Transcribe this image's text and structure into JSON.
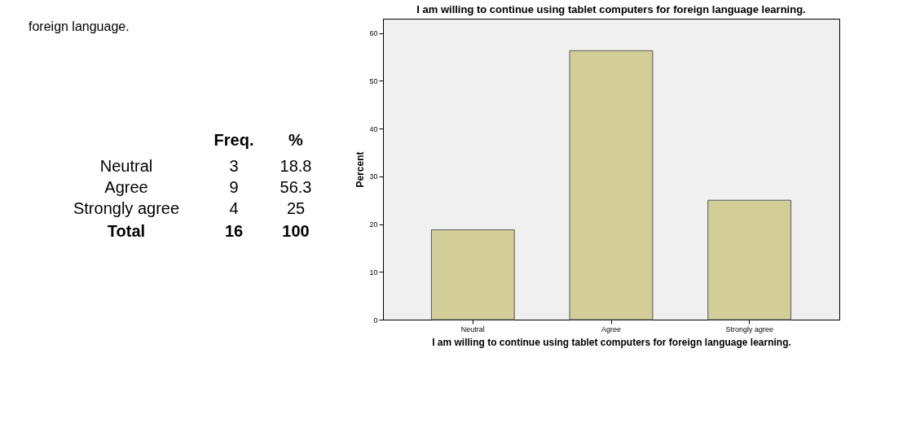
{
  "chart_data": {
    "type": "bar",
    "title": "I am willing to continue using tablet computers for foreign language learning.",
    "xlabel": "I am willing to continue using tablet computers for foreign language learning.",
    "ylabel": "Percent",
    "categories": [
      "Neutral",
      "Agree",
      "Strongly agree"
    ],
    "values": [
      18.8,
      56.3,
      25
    ],
    "color": "#d3ce97",
    "ylim": [
      0,
      63
    ],
    "yticks": [
      0,
      10,
      20,
      30,
      40,
      50,
      60
    ],
    "grid": false,
    "annotations": [
      "foreign language.",
      "Freq.",
      "%",
      "3",
      "9",
      "4",
      "18.8",
      "56.3",
      "25",
      "Total",
      "16",
      "100"
    ]
  }
}
